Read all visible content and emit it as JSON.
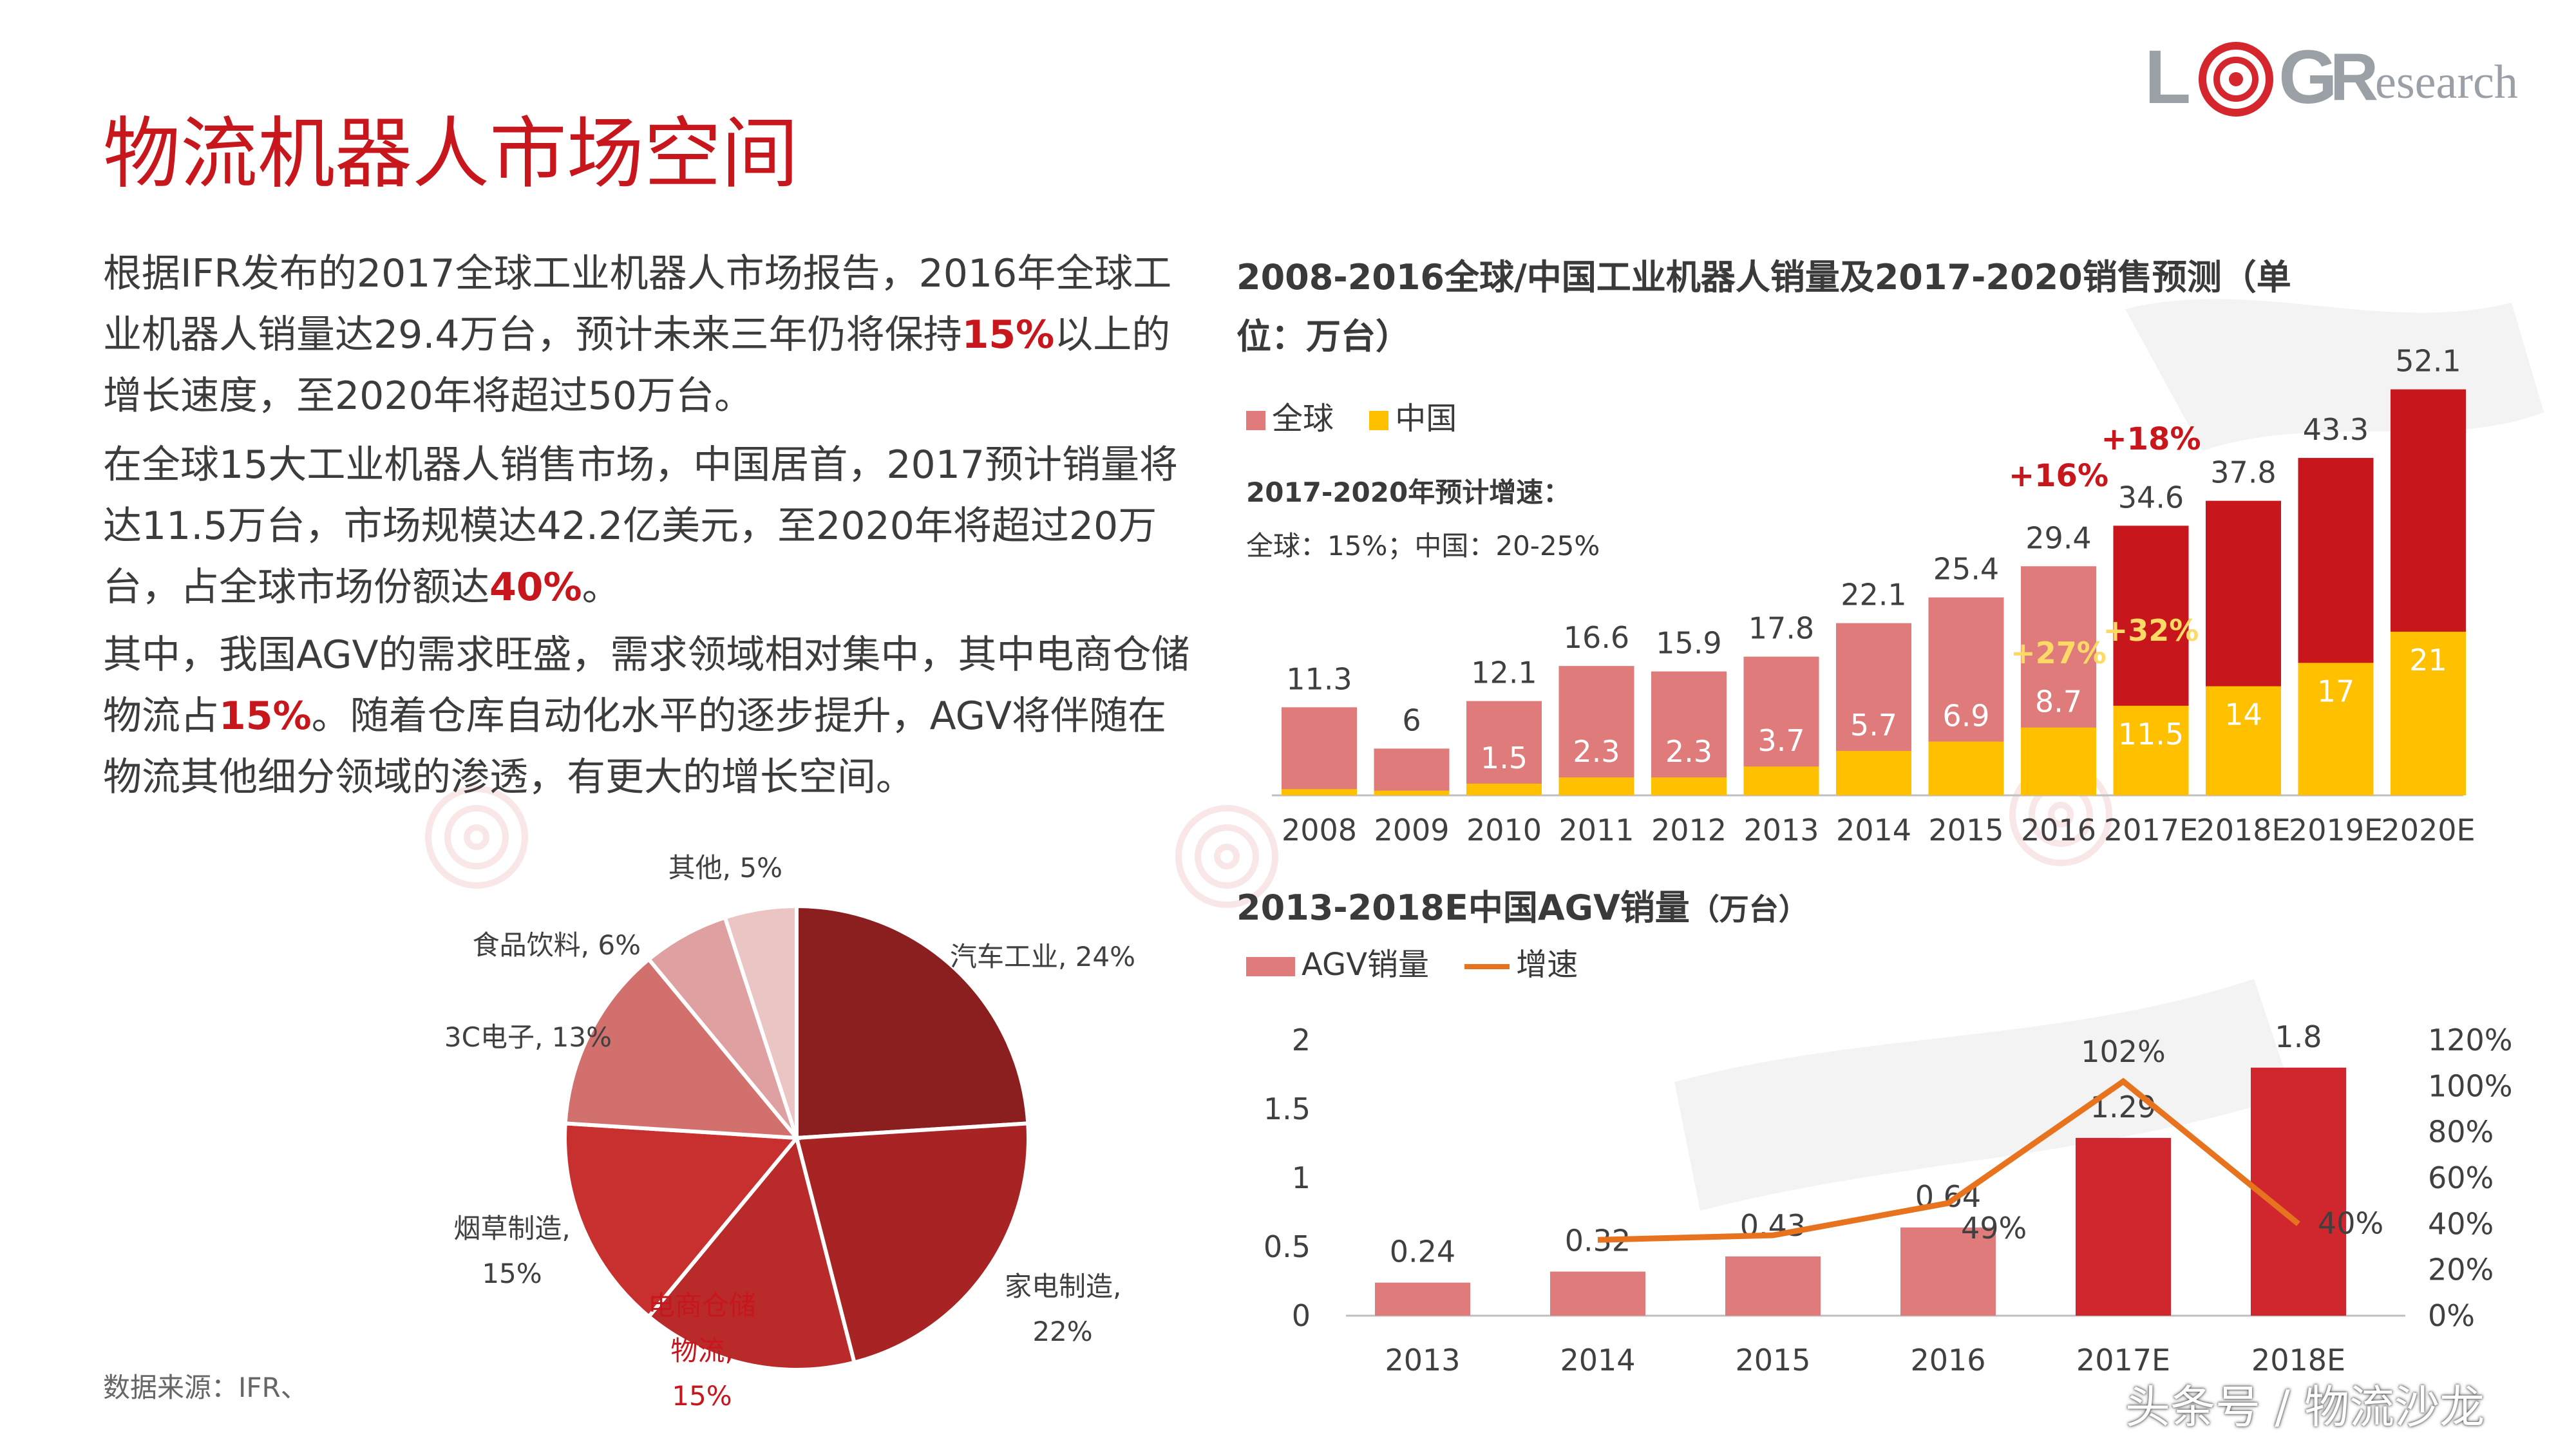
{
  "header": {
    "title": "物流机器人市场空间",
    "logo": {
      "l": "L",
      "g": "G",
      "r": "R",
      "research": "esearch"
    }
  },
  "body": {
    "p1": {
      "a": "根据IFR发布的2017全球工业机器人市场报告，2016年全球工业机器人销量达29.4万台，预计未来三年仍将保持",
      "b": "15%",
      "c": "以上的增长速度，至2020年将超过50万台。"
    },
    "p2": {
      "a": "在全球15大工业机器人销售市场，中国居首，2017预计销量将达11.5万台，市场规模达42.2亿美元，至2020年将超过20万台，占全球市场份额达",
      "b": "40%",
      "c": "。"
    },
    "p3": {
      "a": "其中，我国AGV的需求旺盛，需求领域相对集中，其中电商仓储物流占",
      "b": "15%",
      "c": "。随着仓库自动化水平的逐步提升，AGV将伴随在物流其他细分领域的渗透，有更大的增长空间。"
    }
  },
  "footer": {
    "source": "数据来源：IFR、",
    "account": "头条号 / 物流沙龙"
  },
  "colors": {
    "title_red": "#c8161d",
    "global_bar_hist": "#e07b7b",
    "global_bar_forecast": "#c8161d",
    "china_bar": "#ffc000",
    "agv_bar_hist": "#e07b7b",
    "agv_bar_forecast": "#d0262e",
    "growth_line": "#e8731f"
  },
  "chart_data": [
    {
      "type": "bar",
      "title": "2008-2016全球/中国工业机器人销量及2017-2020销售预测（单位：万台）",
      "categories": [
        "2008",
        "2009",
        "2010",
        "2011",
        "2012",
        "2013",
        "2014",
        "2015",
        "2016",
        "2017E",
        "2018E",
        "2019E",
        "2020E"
      ],
      "series": [
        {
          "name": "全球",
          "values": [
            11.3,
            6,
            12.1,
            16.6,
            15.9,
            17.8,
            22.1,
            25.4,
            29.4,
            34.6,
            37.8,
            43.3,
            52.1
          ],
          "labels": [
            "11.3",
            "6",
            "12.1",
            "16.6",
            "15.9",
            "17.8",
            "22.1",
            "25.4",
            "29.4",
            "34.6",
            "37.8",
            "43.3",
            "52.1"
          ]
        },
        {
          "name": "中国",
          "values": [
            0.8,
            0.6,
            1.5,
            2.3,
            2.3,
            3.7,
            5.7,
            6.9,
            8.7,
            11.5,
            14,
            17,
            21
          ],
          "labels": [
            "",
            "",
            "1.5",
            "2.3",
            "2.3",
            "3.7",
            "5.7",
            "6.9",
            "8.7",
            "11.5",
            "14",
            "17",
            "21"
          ]
        }
      ],
      "legend_position": "top-left",
      "annotations": {
        "growth_title": "2017-2020年预计增速：",
        "growth_note": "全球：15%；中国：20-25%",
        "global_2016": "+16%",
        "global_2017": "+18%",
        "china_2016": "+27%",
        "china_2017": "+32%"
      }
    },
    {
      "type": "bar",
      "title": "2013-2018E中国AGV销量",
      "unit": "（万台）",
      "categories": [
        "2013",
        "2014",
        "2015",
        "2016",
        "2017E",
        "2018E"
      ],
      "ylim": [
        0,
        2
      ],
      "yticks": [
        "0",
        "0.5",
        "1",
        "1.5",
        "2"
      ],
      "y2lim": [
        0,
        1.2
      ],
      "y2ticks": [
        "0%",
        "20%",
        "40%",
        "60%",
        "80%",
        "100%",
        "120%"
      ],
      "series": [
        {
          "name": "AGV销量",
          "values": [
            0.24,
            0.32,
            0.43,
            0.64,
            1.29,
            1.8
          ],
          "labels": [
            "0.24",
            "0.32",
            "0.43",
            "0.64",
            "1.29",
            "1.8"
          ]
        },
        {
          "name": "增速",
          "type": "line",
          "axis": "right",
          "values": [
            null,
            0.33,
            0.35,
            0.49,
            1.02,
            0.4
          ],
          "labels": [
            "",
            "",
            "",
            "49%",
            "102%",
            "40%"
          ]
        }
      ],
      "legend_position": "top-left"
    },
    {
      "type": "pie",
      "title": "",
      "slices": [
        {
          "name": "汽车工业",
          "value": 24,
          "label": "汽车工业, 24%",
          "color": "#8b1f1f"
        },
        {
          "name": "家电制造",
          "value": 22,
          "label_a": "家电制造,",
          "label_b": "22%",
          "color": "#a82323"
        },
        {
          "name": "电商仓储物流",
          "value": 15,
          "label_a": "电商仓储",
          "label_b": "物流,",
          "label_c": "15%",
          "color": "#b92a2a"
        },
        {
          "name": "烟草制造",
          "value": 15,
          "label_a": "烟草制造,",
          "label_b": "15%",
          "color": "#c8302f"
        },
        {
          "name": "3C电子",
          "value": 13,
          "label": "3C电子, 13%",
          "color": "#d2706e"
        },
        {
          "name": "食品饮料",
          "value": 6,
          "label": "食品饮料, 6%",
          "color": "#dea0a0"
        },
        {
          "name": "其他",
          "value": 5,
          "label": "其他, 5%",
          "color": "#ebc4c4"
        }
      ]
    }
  ]
}
